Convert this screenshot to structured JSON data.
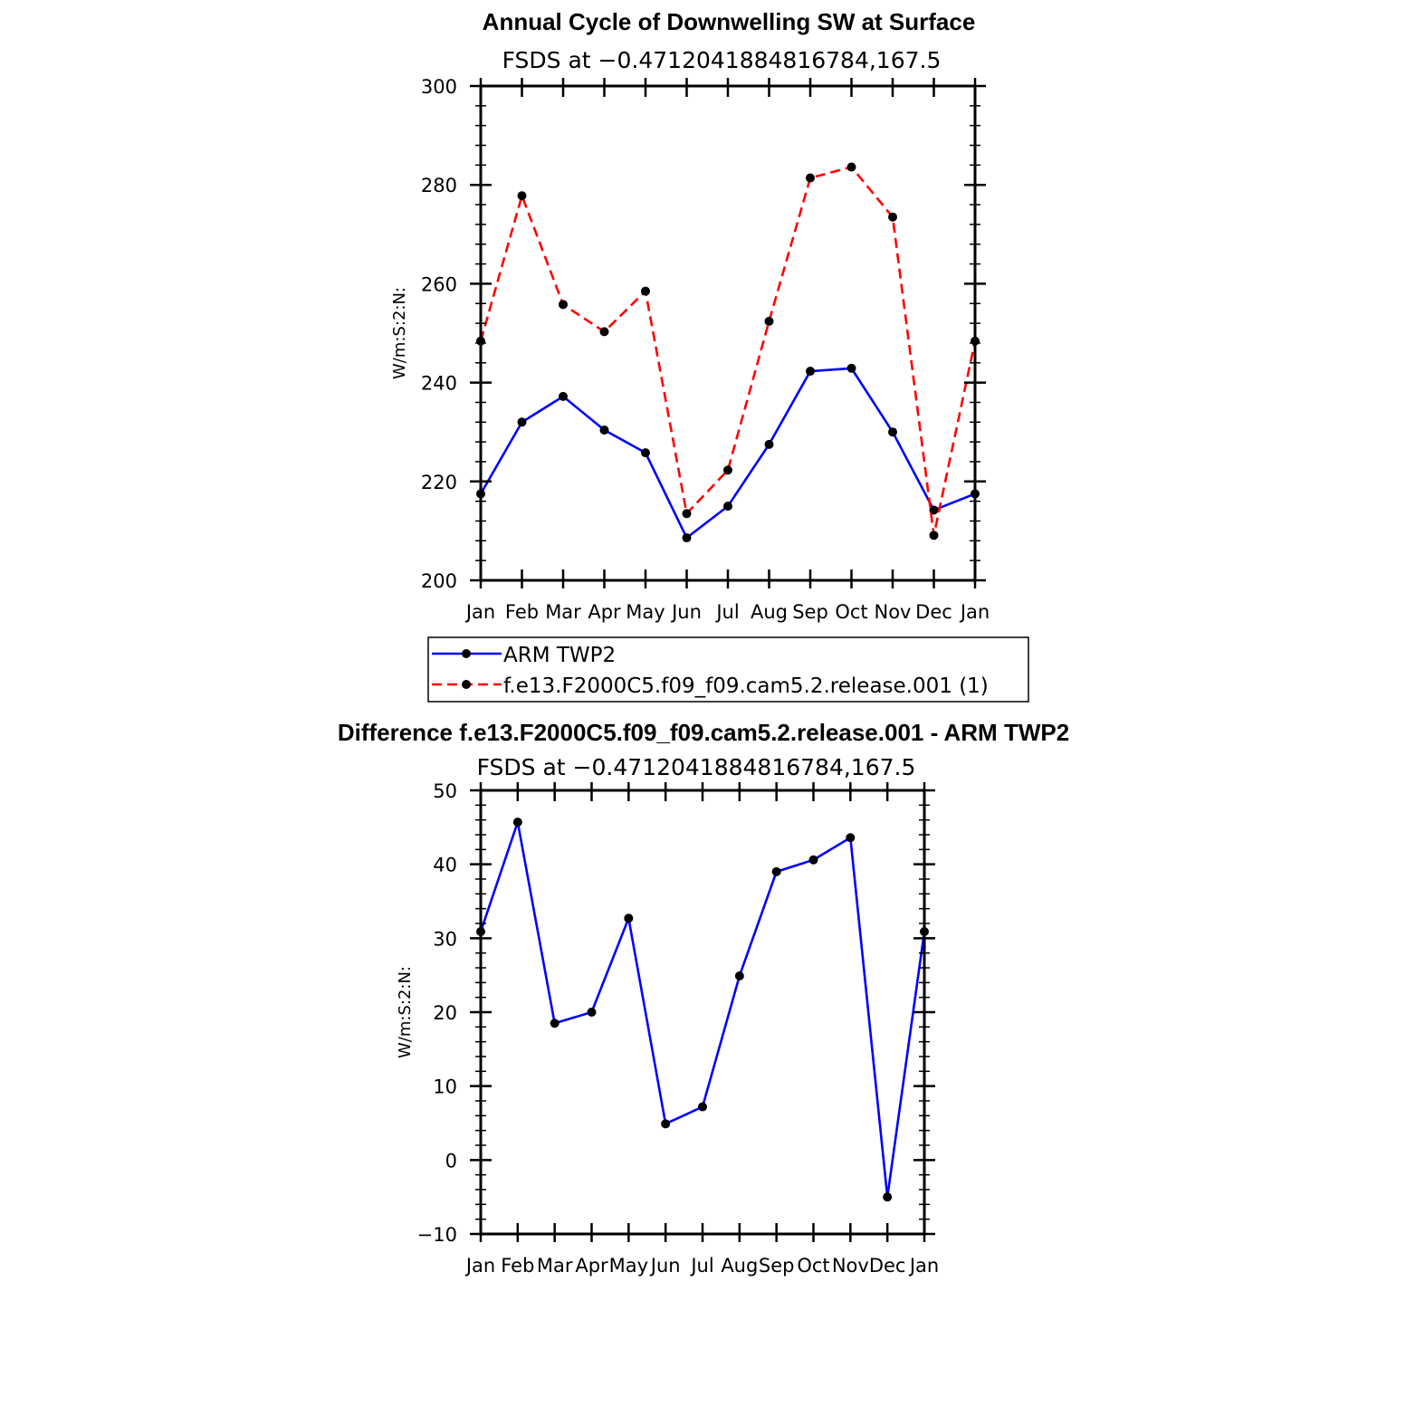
{
  "chart_data": [
    {
      "type": "line",
      "title": "Annual Cycle of Downwelling SW at Surface",
      "subtitle": "FSDS at −0.4712041884816784,167.5",
      "ylabel": "W/m:S:2:N:",
      "xlabel": "",
      "categories": [
        "Jan",
        "Feb",
        "Mar",
        "Apr",
        "May",
        "Jun",
        "Jul",
        "Aug",
        "Sep",
        "Oct",
        "Nov",
        "Dec",
        "Jan"
      ],
      "ylim": [
        200,
        300
      ],
      "yticks": [
        200,
        220,
        240,
        260,
        280,
        300
      ],
      "grid": false,
      "legend_position": "bottom",
      "series": [
        {
          "name": "ARM TWP2",
          "color": "#0000ff",
          "dash": "solid",
          "values": [
            217.5,
            232,
            237.2,
            230.4,
            225.8,
            208.6,
            215,
            227.5,
            242.3,
            242.9,
            230,
            214.2,
            217.5
          ]
        },
        {
          "name": "f.e13.F2000C5.f09_f09.cam5.2.release.001 (1)",
          "color": "#ff0000",
          "dash": "dashed",
          "values": [
            248.4,
            277.8,
            255.8,
            250.3,
            258.5,
            213.5,
            222.3,
            252.4,
            281.4,
            283.6,
            273.5,
            209.1,
            248.4
          ]
        }
      ]
    },
    {
      "type": "line",
      "title": "Difference f.e13.F2000C5.f09_f09.cam5.2.release.001 - ARM TWP2",
      "subtitle": "FSDS at −0.4712041884816784,167.5",
      "ylabel": "W/m:S:2:N:",
      "xlabel": "",
      "categories": [
        "Jan",
        "Feb",
        "Mar",
        "Apr",
        "May",
        "Jun",
        "Jul",
        "Aug",
        "Sep",
        "Oct",
        "Nov",
        "Dec",
        "Jan"
      ],
      "ylim": [
        -10,
        50
      ],
      "yticks": [
        -10,
        0,
        10,
        20,
        30,
        40,
        50
      ],
      "ytick_labels": [
        "−10",
        "0",
        "10",
        "20",
        "30",
        "40",
        "50"
      ],
      "grid": false,
      "series": [
        {
          "color": "#0000ff",
          "dash": "solid",
          "values": [
            30.9,
            45.7,
            18.5,
            20,
            32.7,
            4.9,
            7.2,
            24.9,
            39,
            40.6,
            43.6,
            -5,
            30.9
          ]
        }
      ]
    }
  ]
}
